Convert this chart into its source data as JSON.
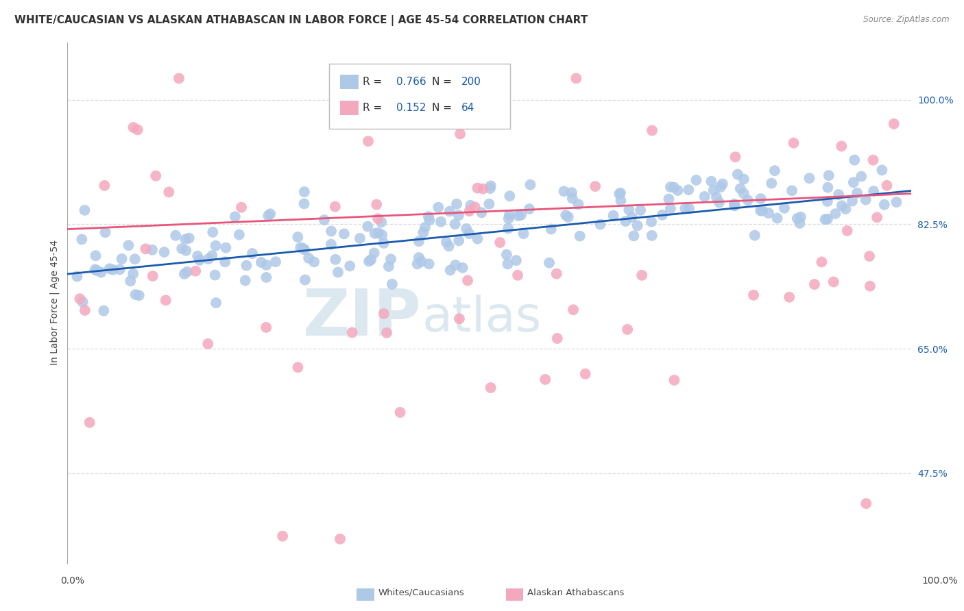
{
  "title": "WHITE/CAUCASIAN VS ALASKAN ATHABASCAN IN LABOR FORCE | AGE 45-54 CORRELATION CHART",
  "source": "Source: ZipAtlas.com",
  "ylabel": "In Labor Force | Age 45-54",
  "ytick_labels": [
    "47.5%",
    "65.0%",
    "82.5%",
    "100.0%"
  ],
  "ytick_values": [
    0.475,
    0.65,
    0.825,
    1.0
  ],
  "xlim": [
    0.0,
    1.0
  ],
  "ylim": [
    0.35,
    1.08
  ],
  "blue_R": 0.766,
  "blue_N": 200,
  "pink_R": 0.152,
  "pink_N": 64,
  "blue_color": "#aec8e8",
  "pink_color": "#f4a8be",
  "blue_line_color": "#1a5aae",
  "pink_line_color": "#e8547a",
  "blue_line_start_y": 0.755,
  "blue_line_end_y": 0.872,
  "pink_line_start_y": 0.818,
  "pink_line_end_y": 0.868,
  "legend_label_blue": "Whites/Caucasians",
  "legend_label_pink": "Alaskan Athabascans",
  "watermark_zip": "ZIP",
  "watermark_atlas": "atlas",
  "background_color": "#ffffff",
  "grid_color": "#dddddd",
  "title_fontsize": 11,
  "axis_label_fontsize": 10,
  "tick_fontsize": 10
}
